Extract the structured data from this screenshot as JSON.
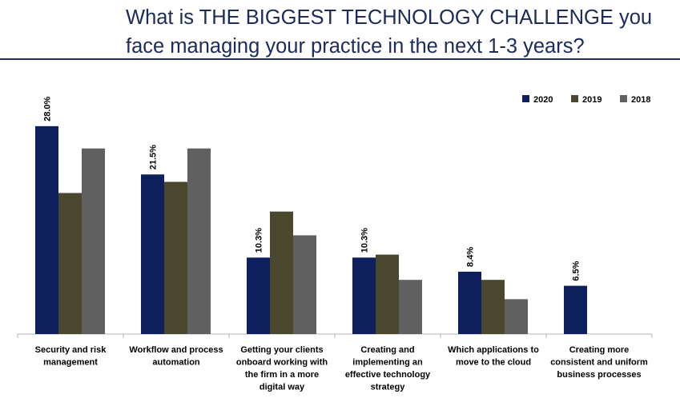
{
  "title": {
    "line1": "What is THE BIGGEST TECHNOLOGY CHALLENGE you",
    "line2": "face managing your practice in the next 1-3 years?"
  },
  "colors": {
    "2020": "#0d1f5c",
    "2019": "#4a472f",
    "2018": "#606060",
    "title": "#1c2b5a",
    "axis": "#b5b5b5",
    "text": "#000000"
  },
  "chart_data": {
    "type": "bar",
    "title": "What is THE BIGGEST TECHNOLOGY CHALLENGE you face managing your practice in the next 1-3 years?",
    "xlabel": "",
    "ylabel": "",
    "ylim": [
      0,
      30
    ],
    "legend_position": "top-right",
    "grid": false,
    "categories": [
      [
        "Security and risk",
        "management"
      ],
      [
        "Workflow and process",
        "automation"
      ],
      [
        "Getting your clients",
        "onboard working with",
        "the firm in a more",
        "digital way"
      ],
      [
        "Creating and",
        "implementing an",
        "effective technology",
        "strategy"
      ],
      [
        "Which applications to",
        "move to the cloud"
      ],
      [
        "Creating more",
        "consistent and uniform",
        "business processes"
      ]
    ],
    "series": [
      {
        "name": "2020",
        "values": [
          28.0,
          21.5,
          10.3,
          10.3,
          8.4,
          6.5
        ]
      },
      {
        "name": "2019",
        "values": [
          19.0,
          20.5,
          16.5,
          10.7,
          7.3,
          null
        ]
      },
      {
        "name": "2018",
        "values": [
          25.0,
          25.0,
          13.3,
          7.3,
          4.7,
          null
        ]
      }
    ],
    "data_labels": [
      "28.0%",
      "21.5%",
      "10.3%",
      "10.3%",
      "8.4%",
      "6.5%"
    ]
  }
}
